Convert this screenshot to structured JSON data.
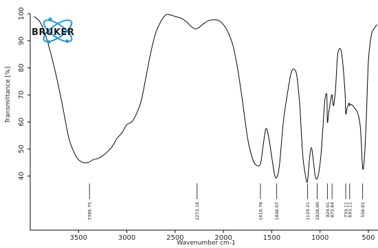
{
  "chart_data": {
    "type": "line",
    "title": "",
    "xlabel": "Wavenumber cm-1",
    "ylabel": "Transmittance [%]",
    "xlim": [
      4000,
      400
    ],
    "xlim_reversed": true,
    "ylim": [
      20,
      100
    ],
    "x_ticks": [
      3500,
      3000,
      2500,
      2000,
      1500,
      1000,
      500
    ],
    "y_ticks": [
      40,
      50,
      60,
      70,
      80,
      90,
      100
    ],
    "grid": false,
    "series": [
      {
        "x": [
          3960,
          3900,
          3850,
          3800,
          3750,
          3700,
          3650,
          3600,
          3550,
          3500,
          3450,
          3400,
          3350,
          3300,
          3250,
          3200,
          3150,
          3100,
          3050,
          3000,
          2950,
          2900,
          2850,
          2800,
          2750,
          2700,
          2650,
          2600,
          2570,
          2540,
          2500,
          2450,
          2420,
          2400,
          2380,
          2340,
          2300,
          2273,
          2250,
          2200,
          2150,
          2100,
          2050,
          2000,
          1950,
          1900,
          1850,
          1800,
          1750,
          1700,
          1660,
          1617,
          1590,
          1560,
          1530,
          1500,
          1470,
          1448,
          1420,
          1380,
          1340,
          1300,
          1270,
          1240,
          1210,
          1180,
          1150,
          1130,
          1110,
          1090,
          1070,
          1050,
          1029,
          1010,
          990,
          970,
          950,
          930,
          924,
          910,
          890,
          876,
          860,
          840,
          820,
          800,
          780,
          760,
          740,
          734,
          720,
          700,
          693,
          680,
          660,
          640,
          620,
          600,
          580,
          559,
          540,
          520,
          500,
          470,
          440,
          410
        ],
        "y": [
          99,
          97,
          93,
          87,
          80,
          72,
          63,
          54,
          49,
          46,
          45,
          45,
          46,
          46.5,
          47.5,
          49,
          51,
          54,
          56,
          59,
          60,
          63,
          68,
          77,
          86,
          93,
          97,
          99.5,
          99.7,
          99.5,
          99,
          98.5,
          98,
          97.5,
          97,
          95.5,
          94.5,
          94.5,
          95,
          96.5,
          97.5,
          97.8,
          97.5,
          96,
          93,
          88,
          79,
          67,
          54,
          46.5,
          44,
          44.5,
          51,
          57.5,
          54,
          47,
          40.5,
          39.5,
          44,
          60,
          70,
          78,
          79.5,
          77,
          66,
          48,
          40,
          38,
          46,
          50.5,
          46,
          40,
          39,
          42,
          48,
          58,
          68,
          70,
          60,
          63.5,
          68,
          70,
          66,
          72,
          84,
          87,
          86,
          80,
          70,
          63,
          65,
          67,
          66,
          66.5,
          66,
          65,
          64,
          62,
          57,
          43,
          47,
          62,
          82,
          92,
          94.5,
          96
        ]
      }
    ],
    "peak_labels": [
      {
        "x": 3386.75,
        "label": "3386.75"
      },
      {
        "x": 2273.18,
        "label": "2273.18"
      },
      {
        "x": 1616.78,
        "label": "1616.78"
      },
      {
        "x": 1448.07,
        "label": "1448.07"
      },
      {
        "x": 1129.21,
        "label": "1129.21"
      },
      {
        "x": 1028.8,
        "label": "1028.80"
      },
      {
        "x": 924.01,
        "label": "924.01"
      },
      {
        "x": 875.84,
        "label": "875.84"
      },
      {
        "x": 734.11,
        "label": "734.11"
      },
      {
        "x": 693.11,
        "label": "693.11"
      },
      {
        "x": 558.81,
        "label": "558.81"
      }
    ]
  },
  "logo": {
    "text": "BRUKER",
    "icon": "atom-icon",
    "colors": {
      "orbit": "#1a9be0",
      "text": "#1b1b1b"
    }
  }
}
